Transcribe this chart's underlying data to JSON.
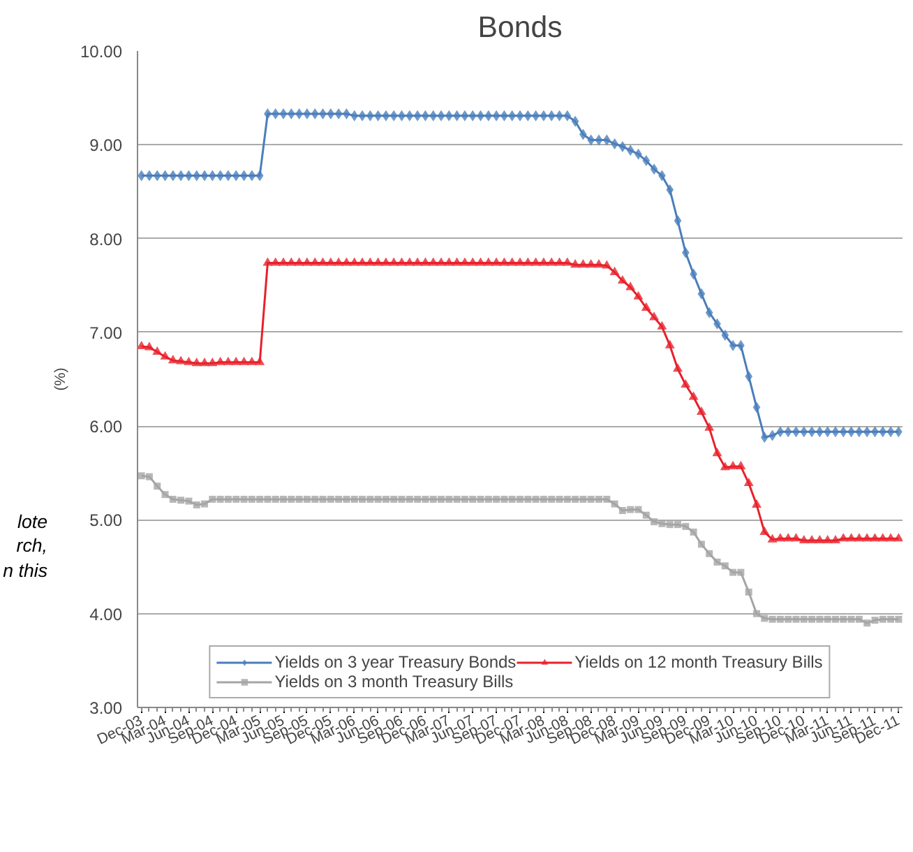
{
  "chart_data": {
    "type": "line",
    "title": "Bonds",
    "ylabel": "(%)",
    "annotations": [
      "lote",
      "rch,",
      "n this"
    ],
    "categories": [
      "Dec-03",
      null,
      null,
      "Mar-04",
      null,
      null,
      "Jun-04",
      null,
      null,
      "Sep-04",
      null,
      null,
      "Dec-04",
      null,
      null,
      "Mar-05",
      null,
      null,
      "Jun-05",
      null,
      null,
      "Sep-05",
      null,
      null,
      "Dec-05",
      null,
      null,
      "Mar-06",
      null,
      null,
      "Jun-06",
      null,
      null,
      "Sep-06",
      null,
      null,
      "Dec-06",
      null,
      null,
      "Mar-07",
      null,
      null,
      "Jun-07",
      null,
      null,
      "Sep-07",
      null,
      null,
      "Dec-07",
      null,
      null,
      "Mar-08",
      null,
      null,
      "Jun-08",
      null,
      null,
      "Sep-08",
      null,
      null,
      "Dec-08",
      null,
      null,
      "Mar-09",
      null,
      null,
      "Jun-09",
      null,
      null,
      "Sep-09",
      null,
      null,
      "Dec-09",
      null,
      null,
      "Mar-10",
      null,
      null,
      "Jun-10",
      null,
      null,
      "Sep-10",
      null,
      null,
      "Dec-10",
      null,
      null,
      "Mar-11",
      null,
      null,
      "Jun-11",
      null,
      null,
      "Sep-11",
      null,
      null,
      "Dec-11"
    ],
    "series": [
      {
        "name": "Yields on 3 year Treasury Bonds",
        "color": "#4a7ebb",
        "marker": "diamond",
        "values": [
          8.67,
          8.67,
          8.67,
          8.67,
          8.67,
          8.67,
          8.67,
          8.67,
          8.67,
          8.67,
          8.67,
          8.67,
          8.67,
          8.67,
          8.67,
          8.67,
          9.33,
          9.33,
          9.33,
          9.33,
          9.33,
          9.33,
          9.33,
          9.33,
          9.33,
          9.33,
          9.33,
          9.31,
          9.31,
          9.31,
          9.31,
          9.31,
          9.31,
          9.31,
          9.31,
          9.31,
          9.31,
          9.31,
          9.31,
          9.31,
          9.31,
          9.31,
          9.31,
          9.31,
          9.31,
          9.31,
          9.31,
          9.31,
          9.31,
          9.31,
          9.31,
          9.31,
          9.31,
          9.31,
          9.31,
          9.25,
          9.11,
          9.05,
          9.05,
          9.05,
          9.01,
          8.98,
          8.94,
          8.9,
          8.83,
          8.74,
          8.67,
          8.52,
          8.19,
          7.85,
          7.62,
          7.41,
          7.21,
          7.09,
          6.97,
          6.86,
          6.86,
          6.53,
          6.2,
          5.88,
          5.9,
          5.94,
          5.94,
          5.94,
          5.94,
          5.94,
          5.94,
          5.94,
          5.94,
          5.94,
          5.94,
          5.94,
          5.94,
          5.94,
          5.94,
          5.94,
          5.94
        ]
      },
      {
        "name": "Yields on 12 month Treasury Bills",
        "color": "#e8202a",
        "marker": "triangle",
        "values": [
          6.85,
          6.84,
          6.79,
          6.74,
          6.7,
          6.69,
          6.68,
          6.67,
          6.67,
          6.67,
          6.68,
          6.68,
          6.68,
          6.68,
          6.68,
          6.68,
          7.74,
          7.74,
          7.74,
          7.74,
          7.74,
          7.74,
          7.74,
          7.74,
          7.74,
          7.74,
          7.74,
          7.74,
          7.74,
          7.74,
          7.74,
          7.74,
          7.74,
          7.74,
          7.74,
          7.74,
          7.74,
          7.74,
          7.74,
          7.74,
          7.74,
          7.74,
          7.74,
          7.74,
          7.74,
          7.74,
          7.74,
          7.74,
          7.74,
          7.74,
          7.74,
          7.74,
          7.74,
          7.74,
          7.74,
          7.72,
          7.72,
          7.72,
          7.72,
          7.71,
          7.64,
          7.55,
          7.48,
          7.38,
          7.26,
          7.16,
          7.06,
          6.86,
          6.61,
          6.44,
          6.31,
          6.15,
          5.98,
          5.71,
          5.56,
          5.57,
          5.57,
          5.39,
          5.16,
          4.87,
          4.79,
          4.8,
          4.8,
          4.8,
          4.78,
          4.78,
          4.78,
          4.78,
          4.78,
          4.8,
          4.8,
          4.8,
          4.8,
          4.8,
          4.8,
          4.8,
          4.8
        ]
      },
      {
        "name": "Yields on 3 month Treasury Bills",
        "color": "#a5a5a5",
        "marker": "square",
        "values": [
          5.47,
          5.46,
          5.36,
          5.27,
          5.22,
          5.21,
          5.2,
          5.16,
          5.17,
          5.22,
          5.22,
          5.22,
          5.22,
          5.22,
          5.22,
          5.22,
          5.22,
          5.22,
          5.22,
          5.22,
          5.22,
          5.22,
          5.22,
          5.22,
          5.22,
          5.22,
          5.22,
          5.22,
          5.22,
          5.22,
          5.22,
          5.22,
          5.22,
          5.22,
          5.22,
          5.22,
          5.22,
          5.22,
          5.22,
          5.22,
          5.22,
          5.22,
          5.22,
          5.22,
          5.22,
          5.22,
          5.22,
          5.22,
          5.22,
          5.22,
          5.22,
          5.22,
          5.22,
          5.22,
          5.22,
          5.22,
          5.22,
          5.22,
          5.22,
          5.22,
          5.17,
          5.1,
          5.11,
          5.11,
          5.05,
          4.98,
          4.96,
          4.95,
          4.95,
          4.93,
          4.87,
          4.74,
          4.64,
          4.55,
          4.51,
          4.44,
          4.44,
          4.23,
          4.0,
          3.95,
          3.94,
          3.94,
          3.94,
          3.94,
          3.94,
          3.94,
          3.94,
          3.94,
          3.94,
          3.94,
          3.94,
          3.94,
          3.9,
          3.93,
          3.94,
          3.94,
          3.94
        ]
      }
    ],
    "ylim": [
      3,
      10
    ],
    "yticks": [
      {
        "value": 3,
        "label": "3.00"
      },
      {
        "value": 4,
        "label": "4.00"
      },
      {
        "value": 5,
        "label": "5.00"
      },
      {
        "value": 6,
        "label": "6.00"
      },
      {
        "value": 7,
        "label": "7.00"
      },
      {
        "value": 8,
        "label": "8.00"
      },
      {
        "value": 9,
        "label": "9.00"
      },
      {
        "value": 10,
        "label": "10.00"
      }
    ],
    "grid": "y",
    "legend": "bottom",
    "line_style": "solid"
  }
}
